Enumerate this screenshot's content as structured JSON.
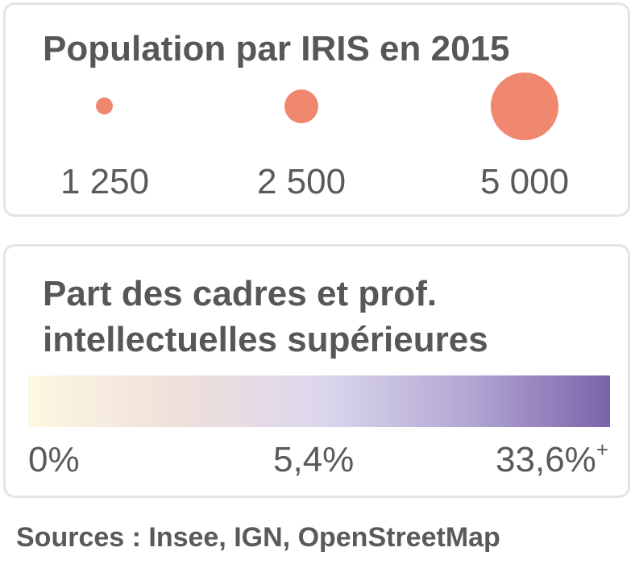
{
  "population_legend": {
    "title": "Population par IRIS en 2015",
    "bubble_color": "#ef886f",
    "sizes": [
      {
        "value": 1250,
        "label": "1 250"
      },
      {
        "value": 2500,
        "label": "2 500"
      },
      {
        "value": 5000,
        "label": "5 000"
      }
    ]
  },
  "cadres_legend": {
    "title_line_1": "Part des cadres et prof.",
    "title_line_2": "intellectuelles supérieures",
    "ramp_colors": [
      "#fdf8e2",
      "#efe0da",
      "#dcd7ec",
      "#b4a9d4",
      "#7b63aa"
    ],
    "min_label": "0%",
    "mid_label": "5,4%",
    "max_label": "33,6%",
    "max_suffix": "+"
  },
  "sources": "Sources : Insee, IGN, OpenStreetMap"
}
